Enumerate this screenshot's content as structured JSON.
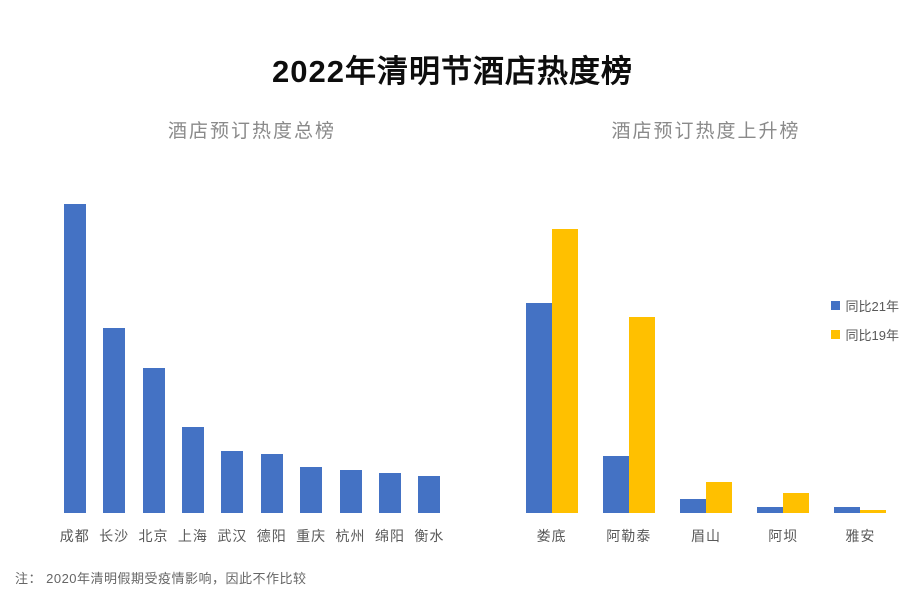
{
  "title": "2022年清明节酒店热度榜",
  "note": "注：  2020年清明假期受疫情影响，因此不作比较",
  "colors": {
    "bar_blue": "#4472C4",
    "bar_yellow": "#FFC000",
    "title_text": "#0d0d0d",
    "subtitle_text": "#8a8a8a",
    "axis_label_text": "#595959",
    "note_text": "#666666",
    "background": "#ffffff"
  },
  "chart_data": [
    {
      "type": "bar",
      "title": "酒店预订热度总榜",
      "categories": [
        "成都",
        "长沙",
        "北京",
        "上海",
        "武汉",
        "德阳",
        "重庆",
        "杭州",
        "绵阳",
        "衡水"
      ],
      "values": [
        100,
        60,
        47,
        28,
        20,
        19,
        15,
        14,
        13,
        12
      ],
      "series_color": "#4472C4",
      "ylabel": "",
      "xlabel": "",
      "ylim": [
        0,
        100
      ],
      "grid": false,
      "y_axis_visible": false,
      "value_scale": "relative heat index, tallest bar (成都) = 100"
    },
    {
      "type": "bar",
      "title": "酒店预订热度上升榜",
      "categories": [
        "娄底",
        "阿勒泰",
        "眉山",
        "阿坝",
        "雅安"
      ],
      "series": [
        {
          "name": "同比21年",
          "color": "#4472C4",
          "values": [
            74,
            20,
            5,
            2,
            2
          ]
        },
        {
          "name": "同比19年",
          "color": "#FFC000",
          "values": [
            100,
            69,
            11,
            7,
            1
          ]
        }
      ],
      "ylabel": "",
      "xlabel": "",
      "ylim": [
        0,
        100
      ],
      "grid": false,
      "y_axis_visible": false,
      "legend_position": "right",
      "value_scale": "relative heat index, tallest bar (娄底 同比19年) = 100"
    }
  ]
}
